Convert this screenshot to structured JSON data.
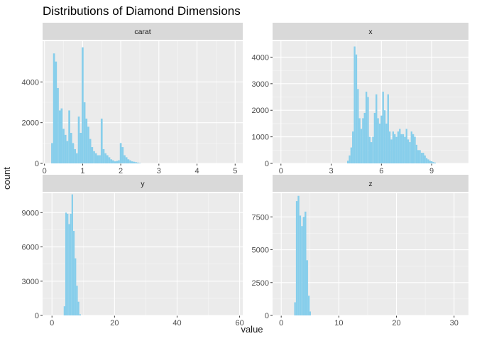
{
  "chart_data": [
    {
      "type": "bar",
      "facet": "carat",
      "title": "Distributions of Diamond Dimensions",
      "xlabel": "value",
      "ylabel": "count",
      "xlim": [
        -0.05,
        5.2
      ],
      "ylim": [
        0,
        6000
      ],
      "xticks": [
        0,
        1,
        2,
        3,
        4,
        5
      ],
      "yticks": [
        0,
        2000,
        4000
      ],
      "bin_width": 0.05,
      "x": [
        0.2,
        0.25,
        0.3,
        0.35,
        0.4,
        0.45,
        0.5,
        0.55,
        0.6,
        0.65,
        0.7,
        0.75,
        0.8,
        0.85,
        0.9,
        0.95,
        1.0,
        1.05,
        1.1,
        1.15,
        1.2,
        1.25,
        1.3,
        1.35,
        1.4,
        1.45,
        1.5,
        1.55,
        1.6,
        1.65,
        1.7,
        1.75,
        1.8,
        1.85,
        1.9,
        1.95,
        2.0,
        2.05,
        2.1,
        2.15,
        2.2,
        2.25,
        2.3,
        2.35,
        2.4,
        2.45,
        2.5
      ],
      "values": [
        1000,
        5400,
        5000,
        3700,
        2600,
        2700,
        1700,
        1400,
        1100,
        2600,
        1500,
        1000,
        700,
        500,
        2300,
        1500,
        5700,
        3000,
        2200,
        1800,
        1200,
        800,
        600,
        500,
        400,
        400,
        2200,
        700,
        500,
        400,
        300,
        200,
        150,
        100,
        120,
        150,
        1000,
        800,
        400,
        300,
        200,
        150,
        100,
        80,
        60,
        40,
        20
      ]
    },
    {
      "type": "bar",
      "facet": "x",
      "xlim": [
        -0.5,
        11.2
      ],
      "ylim": [
        0,
        4600
      ],
      "xticks": [
        0,
        3,
        6,
        9
      ],
      "yticks": [
        0,
        1000,
        2000,
        3000,
        4000
      ],
      "bin_width": 0.1,
      "x": [
        4.0,
        4.1,
        4.2,
        4.3,
        4.4,
        4.5,
        4.6,
        4.7,
        4.8,
        4.9,
        5.0,
        5.1,
        5.2,
        5.3,
        5.4,
        5.5,
        5.6,
        5.7,
        5.8,
        5.9,
        6.0,
        6.1,
        6.2,
        6.3,
        6.4,
        6.5,
        6.6,
        6.7,
        6.8,
        6.9,
        7.0,
        7.1,
        7.2,
        7.3,
        7.4,
        7.5,
        7.6,
        7.7,
        7.8,
        7.9,
        8.0,
        8.1,
        8.2,
        8.3,
        8.4,
        8.5,
        8.6,
        8.7,
        8.8,
        8.9,
        9.0,
        9.1,
        9.2
      ],
      "values": [
        100,
        300,
        600,
        1200,
        4400,
        4100,
        2800,
        1700,
        1300,
        1700,
        1900,
        2700,
        2500,
        1000,
        800,
        1000,
        1900,
        2600,
        1700,
        1500,
        1800,
        2700,
        2000,
        1500,
        2600,
        1200,
        900,
        1200,
        1100,
        1000,
        1200,
        1300,
        1100,
        1100,
        1000,
        1300,
        900,
        800,
        1200,
        1100,
        1000,
        700,
        500,
        500,
        400,
        400,
        300,
        200,
        150,
        100,
        80,
        50,
        30
      ]
    },
    {
      "type": "bar",
      "facet": "y",
      "xlim": [
        -3,
        61
      ],
      "ylim": [
        0,
        10700
      ],
      "xticks": [
        0,
        20,
        40,
        60
      ],
      "yticks": [
        0,
        3000,
        6000,
        9000
      ],
      "bin_width": 0.5,
      "x": [
        4.0,
        4.5,
        5.0,
        5.5,
        6.0,
        6.5,
        7.0,
        7.5,
        8.0,
        8.5,
        9.0
      ],
      "values": [
        800,
        9000,
        8900,
        8000,
        8900,
        10600,
        7400,
        5000,
        2600,
        1200,
        100
      ]
    },
    {
      "type": "bar",
      "facet": "z",
      "xlim": [
        -1.5,
        32.5
      ],
      "ylim": [
        0,
        9300
      ],
      "xticks": [
        0,
        10,
        20,
        30
      ],
      "yticks": [
        0,
        2500,
        5000,
        7500
      ],
      "bin_width": 0.3,
      "x": [
        2.4,
        2.7,
        3.0,
        3.3,
        3.6,
        3.9,
        4.2,
        4.5,
        4.8,
        5.0
      ],
      "values": [
        1000,
        8700,
        9100,
        7600,
        6800,
        7500,
        7900,
        4200,
        1500,
        300
      ]
    }
  ]
}
